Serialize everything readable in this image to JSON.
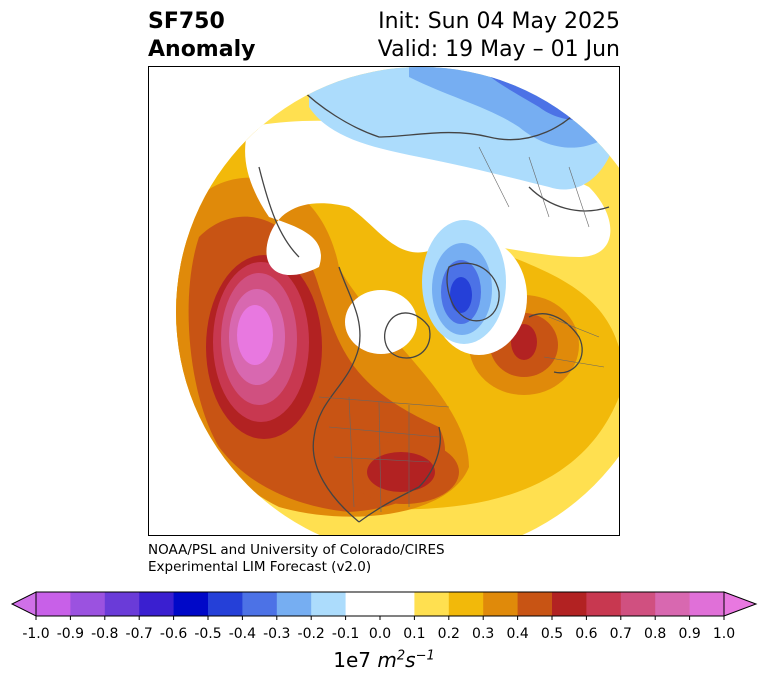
{
  "header": {
    "title_line1": "SF750",
    "title_line2": "Anomaly",
    "init_label": "Init: Sun 04 May 2025",
    "valid_label": "Valid: 19 May – 01 Jun"
  },
  "credit": {
    "line1": "NOAA/PSL and University of Colorado/CIRES",
    "line2": "Experimental LIM Forecast (v2.0)"
  },
  "colorbar": {
    "ticks": [
      "-1.0",
      "-0.9",
      "-0.8",
      "-0.7",
      "-0.6",
      "-0.5",
      "-0.4",
      "-0.3",
      "-0.2",
      "-0.1",
      "0.0",
      "0.1",
      "0.2",
      "0.3",
      "0.4",
      "0.5",
      "0.6",
      "0.7",
      "0.8",
      "0.9",
      "1.0"
    ],
    "colors": [
      "#9b52e0",
      "#6a3bd8",
      "#3a1fd0",
      "#0008c8",
      "#2540d8",
      "#4c72e6",
      "#76aef2",
      "#acdcfc",
      "#ffffff",
      "#ffe050",
      "#f2b90a",
      "#e08a0a",
      "#c85414",
      "#b22222",
      "#c83850",
      "#d05080",
      "#d868b0"
    ],
    "under_color": "#d070e8",
    "over_color": "#e878e0",
    "unit_prefix": "1e7",
    "unit_m": "m",
    "unit_m_exp": "2",
    "unit_s": "s",
    "unit_s_exp": "−1"
  }
}
